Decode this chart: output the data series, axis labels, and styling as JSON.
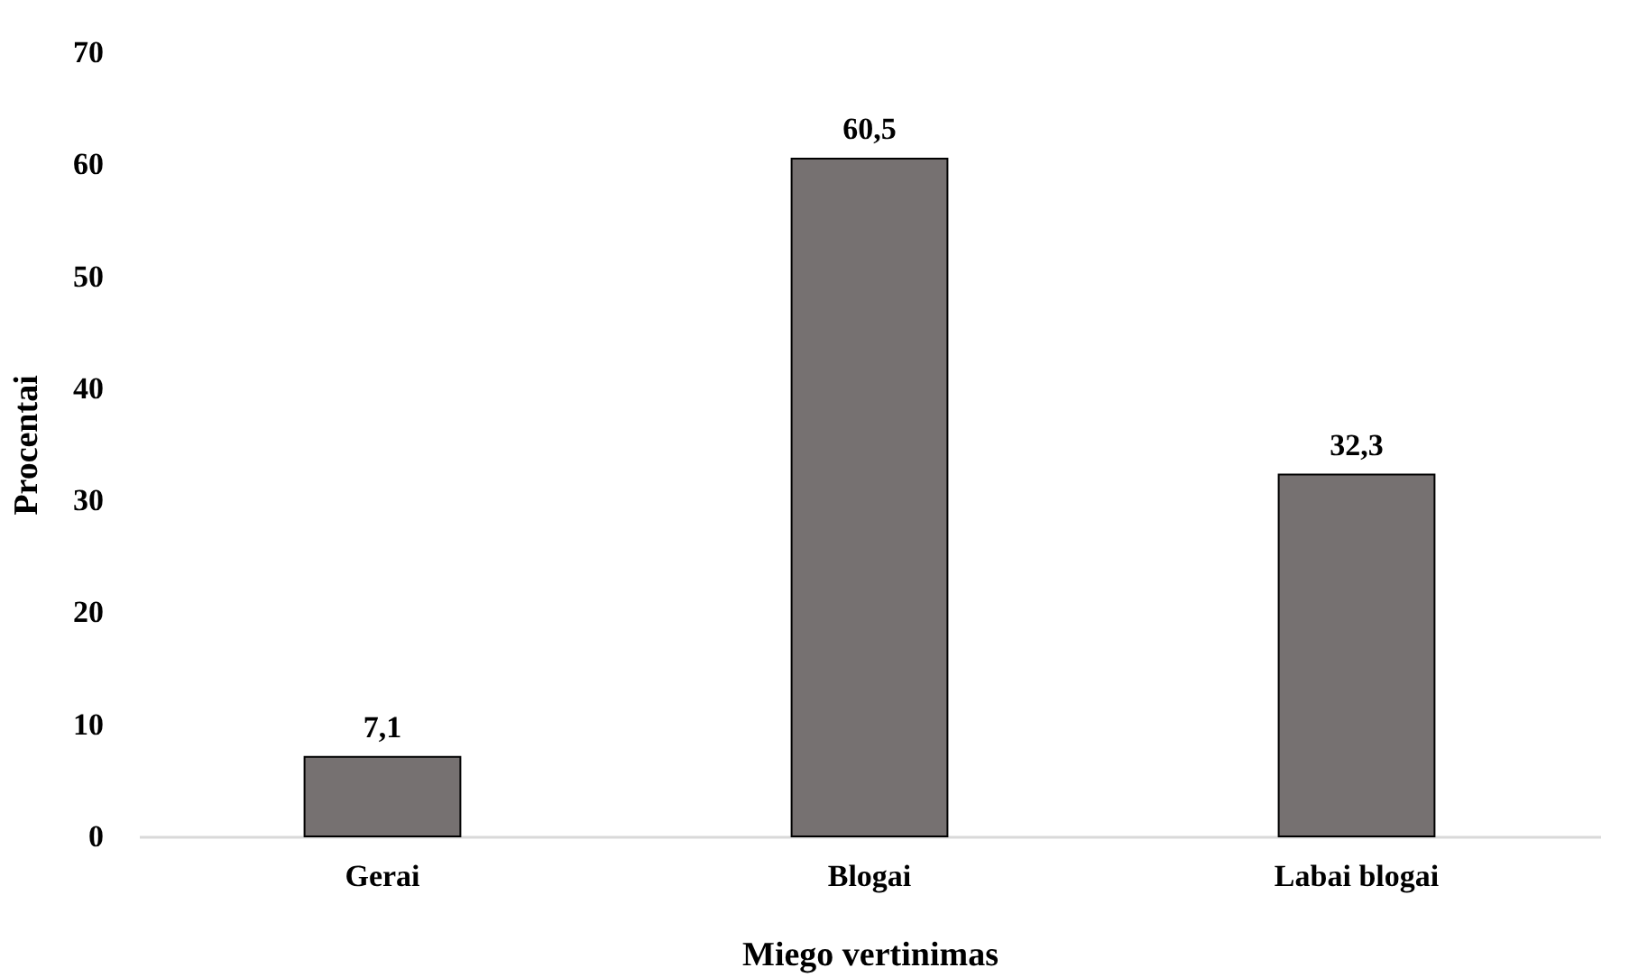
{
  "chart_data": {
    "type": "bar",
    "xlabel": "Miego vertinimas",
    "ylabel": "Procentai",
    "categories": [
      "Gerai",
      "Blogai",
      "Labai blogai"
    ],
    "values": [
      7.1,
      60.5,
      32.3
    ],
    "value_labels": [
      "7,1",
      "60,5",
      "32,3"
    ],
    "color": "#767171",
    "ylim": [
      0,
      70
    ],
    "yticks": [
      0,
      10,
      20,
      30,
      40,
      50,
      60,
      70
    ],
    "grid": false
  }
}
